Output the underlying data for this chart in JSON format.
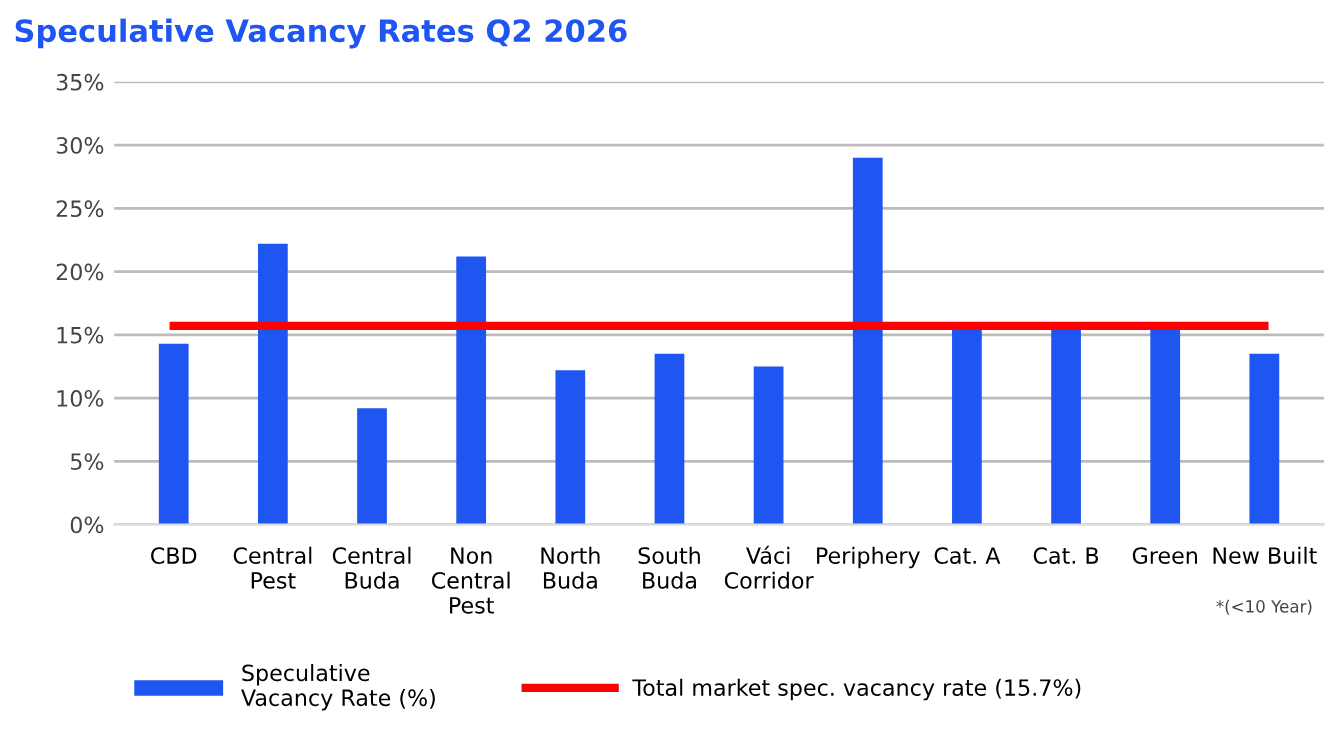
{
  "chart_data": {
    "type": "bar",
    "title": "Speculative Vacancy Rates Q2 2026",
    "categories": [
      "CBD",
      "Central\nPest",
      "Central\nBuda",
      "Non\nCentral\nPest",
      "North\nBuda",
      "South\nBuda",
      "Váci\nCorridor",
      "Periphery",
      "Cat. A",
      "Cat. B",
      "Green",
      "New Built"
    ],
    "series": [
      {
        "name": "Speculative\nVacancy Rate (%)",
        "color": "#1f55f0",
        "values": [
          14.3,
          22.2,
          9.2,
          21.2,
          12.2,
          13.5,
          12.5,
          29.0,
          15.7,
          15.7,
          15.7,
          13.5
        ]
      },
      {
        "name": "Total market spec. vacancy rate (15.7%)",
        "type": "line",
        "color": "#ff0000",
        "values": [
          15.7,
          15.7,
          15.7,
          15.7,
          15.7,
          15.7,
          15.7,
          15.7,
          15.7,
          15.7,
          15.7,
          15.7
        ]
      }
    ],
    "annotations": [
      "*(<10 Year)"
    ],
    "ylim": [
      0,
      35
    ],
    "yticks": [
      {
        "value": 0,
        "label": "0%"
      },
      {
        "value": 5,
        "label": "5%"
      },
      {
        "value": 10,
        "label": "10%"
      },
      {
        "value": 15,
        "label": "15%"
      },
      {
        "value": 20,
        "label": "20%"
      },
      {
        "value": 25,
        "label": "25%"
      },
      {
        "value": 30,
        "label": "30%"
      },
      {
        "value": 35,
        "label": "35%"
      }
    ],
    "grid": "y",
    "legend": "bottom",
    "marker": "none",
    "line_style": "solid"
  }
}
